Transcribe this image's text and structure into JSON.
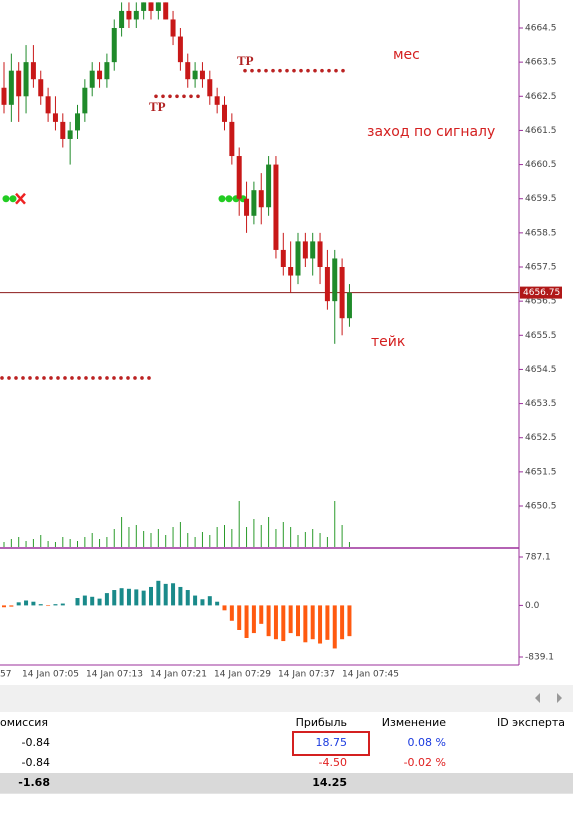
{
  "chart_data": {
    "type": "candlestick",
    "candles": [
      [
        4662.75,
        4663.5,
        4662,
        4662.25
      ],
      [
        4662.25,
        4663.75,
        4661.75,
        4663.25
      ],
      [
        4663.25,
        4663.5,
        4661.75,
        4662.5
      ],
      [
        4662.5,
        4664,
        4662,
        4663.5
      ],
      [
        4663.5,
        4664,
        4662.75,
        4663
      ],
      [
        4663,
        4663.25,
        4662.25,
        4662.5
      ],
      [
        4662.5,
        4662.75,
        4661.75,
        4662
      ],
      [
        4662,
        4662.5,
        4661.5,
        4661.75
      ],
      [
        4661.75,
        4662,
        4661,
        4661.25
      ],
      [
        4661.25,
        4661.75,
        4660.5,
        4661.5
      ],
      [
        4661.5,
        4662.25,
        4661.25,
        4662
      ],
      [
        4662,
        4663,
        4661.75,
        4662.75
      ],
      [
        4662.75,
        4663.5,
        4662.5,
        4663.25
      ],
      [
        4663.25,
        4663.5,
        4662.75,
        4663
      ],
      [
        4663,
        4663.75,
        4662.75,
        4663.5
      ],
      [
        4663.5,
        4664.75,
        4663.25,
        4664.5
      ],
      [
        4664.5,
        4665.25,
        4664.25,
        4665
      ],
      [
        4665,
        4665.25,
        4664.5,
        4664.75
      ],
      [
        4664.75,
        4665.25,
        4664.5,
        4665
      ],
      [
        4665,
        4665.25,
        4664.75,
        4665.25
      ],
      [
        4665.25,
        4665.25,
        4664.75,
        4665
      ],
      [
        4665,
        4665.25,
        4664.75,
        4665.25
      ],
      [
        4665.25,
        4665.25,
        4664.75,
        4664.75
      ],
      [
        4664.75,
        4665,
        4664,
        4664.25
      ],
      [
        4664.25,
        4664.5,
        4663.25,
        4663.5
      ],
      [
        4663.5,
        4663.75,
        4662.75,
        4663
      ],
      [
        4663,
        4663.5,
        4662.75,
        4663.25
      ],
      [
        4663.25,
        4663.5,
        4662.75,
        4663
      ],
      [
        4663,
        4663.25,
        4662.25,
        4662.5
      ],
      [
        4662.5,
        4662.75,
        4662,
        4662.25
      ],
      [
        4662.25,
        4662.5,
        4661.5,
        4661.75
      ],
      [
        4661.75,
        4662,
        4660.5,
        4660.75
      ],
      [
        4660.75,
        4661,
        4659,
        4659.5
      ],
      [
        4659.5,
        4660,
        4658.5,
        4659
      ],
      [
        4659,
        4660,
        4658.75,
        4659.75
      ],
      [
        4659.75,
        4660.25,
        4658.75,
        4659.25
      ],
      [
        4659.25,
        4660.75,
        4659,
        4660.5
      ],
      [
        4660.5,
        4660.75,
        4657.75,
        4658
      ],
      [
        4658,
        4658.5,
        4657.25,
        4657.5
      ],
      [
        4657.5,
        4658.25,
        4656.75,
        4657.25
      ],
      [
        4657.25,
        4658.5,
        4657,
        4658.25
      ],
      [
        4658.25,
        4658.5,
        4657.5,
        4657.75
      ],
      [
        4657.75,
        4658.5,
        4657.25,
        4658.25
      ],
      [
        4658.25,
        4658.5,
        4657,
        4657.5
      ],
      [
        4657.5,
        4658,
        4656.25,
        4656.5
      ],
      [
        4656.5,
        4658,
        4655.25,
        4657.75
      ],
      [
        4657.5,
        4657.75,
        4655.5,
        4656
      ],
      [
        4656,
        4657,
        4655.75,
        4656.75
      ]
    ],
    "ylim": [
      4649.27,
      4665.32
    ],
    "yticks": [
      4664.5,
      4663.5,
      4662.5,
      4661.5,
      4660.5,
      4659.5,
      4658.5,
      4657.5,
      4656.5,
      4655.5,
      4654.5,
      4653.5,
      4652.5,
      4651.5,
      4650.5
    ],
    "current_price": {
      "value": 4656.75,
      "label": "4656.75"
    },
    "tp_levels": [
      4663.25,
      4662.5
    ],
    "stop_level": 4654.25,
    "entry_level": 4659.5,
    "volume": [
      5,
      8,
      10,
      6,
      8,
      12,
      6,
      5,
      10,
      8,
      6,
      10,
      14,
      8,
      10,
      18,
      30,
      20,
      22,
      16,
      14,
      18,
      12,
      20,
      25,
      14,
      10,
      15,
      12,
      20,
      22,
      18,
      46,
      20,
      28,
      22,
      30,
      18,
      25,
      20,
      12,
      15,
      18,
      14,
      10,
      46,
      22,
      5
    ],
    "vlim": [
      0,
      50
    ],
    "oscillator": [
      -30,
      -20,
      50,
      80,
      60,
      20,
      -10,
      20,
      30,
      0,
      120,
      160,
      140,
      110,
      200,
      250,
      280,
      270,
      260,
      240,
      300,
      400,
      350,
      360,
      300,
      250,
      160,
      100,
      150,
      60,
      -80,
      -250,
      -400,
      -530,
      -450,
      -300,
      -500,
      -550,
      -580,
      -450,
      -500,
      -600,
      -550,
      -620,
      -560,
      -700,
      -550,
      -500
    ],
    "osc_lim": [
      -839.1,
      787.1
    ],
    "osc_ticks": [
      787.1,
      {
        "value": 0,
        "label": "0.0"
      },
      -839.1
    ],
    "time_labels": [
      "57",
      "14 Jan 07:05",
      "14 Jan 07:13",
      "14 Jan 07:21",
      "14 Jan 07:29",
      "14 Jan 07:37",
      "14 Jan 07:45"
    ],
    "annotations": [
      "мес",
      "заход по сигналу",
      "тейк",
      "TP",
      "TP"
    ]
  },
  "table": {
    "headers": [
      "омиссия",
      "Прибыль",
      "Изменение",
      "ID эксперта"
    ],
    "rows": [
      [
        "-0.84",
        "18.75",
        "0.08 %"
      ],
      [
        "-0.84",
        "-4.50",
        "-0.02 %"
      ]
    ],
    "total": [
      "-1.68",
      "14.25"
    ]
  }
}
